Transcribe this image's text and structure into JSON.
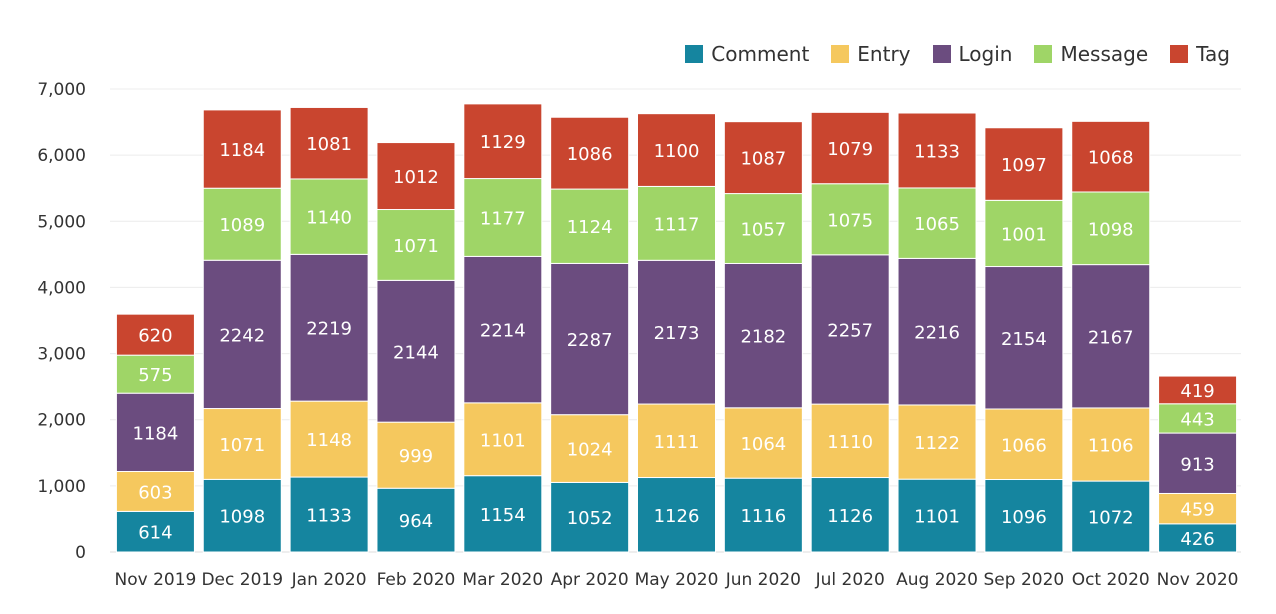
{
  "chart_data": {
    "type": "bar",
    "stacked": true,
    "categories": [
      "Nov 2019",
      "Dec 2019",
      "Jan 2020",
      "Feb 2020",
      "Mar 2020",
      "Apr 2020",
      "May 2020",
      "Jun 2020",
      "Jul 2020",
      "Aug 2020",
      "Sep 2020",
      "Oct 2020",
      "Nov 2020"
    ],
    "series": [
      {
        "name": "Comment",
        "color": "#15859f",
        "values": [
          614,
          1098,
          1133,
          964,
          1154,
          1052,
          1126,
          1116,
          1126,
          1101,
          1096,
          1072,
          426
        ]
      },
      {
        "name": "Entry",
        "color": "#f5c85e",
        "values": [
          603,
          1071,
          1148,
          999,
          1101,
          1024,
          1111,
          1064,
          1110,
          1122,
          1066,
          1106,
          459
        ]
      },
      {
        "name": "Login",
        "color": "#6b4c7f",
        "values": [
          1184,
          2242,
          2219,
          2144,
          2214,
          2287,
          2173,
          2182,
          2257,
          2216,
          2154,
          2167,
          913
        ]
      },
      {
        "name": "Message",
        "color": "#9fd567",
        "values": [
          575,
          1089,
          1140,
          1071,
          1177,
          1124,
          1117,
          1057,
          1075,
          1065,
          1001,
          1098,
          443
        ]
      },
      {
        "name": "Tag",
        "color": "#c9452f",
        "values": [
          620,
          1184,
          1081,
          1012,
          1129,
          1086,
          1100,
          1087,
          1079,
          1133,
          1097,
          1068,
          419
        ]
      }
    ],
    "ylim": [
      0,
      7000
    ],
    "yticks": [
      0,
      1000,
      2000,
      3000,
      4000,
      5000,
      6000,
      7000
    ],
    "ytick_labels": [
      "0",
      "1,000",
      "2,000",
      "3,000",
      "4,000",
      "5,000",
      "6,000",
      "7,000"
    ],
    "grid": true,
    "legend_position": "top-right",
    "title": "",
    "xlabel": "",
    "ylabel": ""
  }
}
